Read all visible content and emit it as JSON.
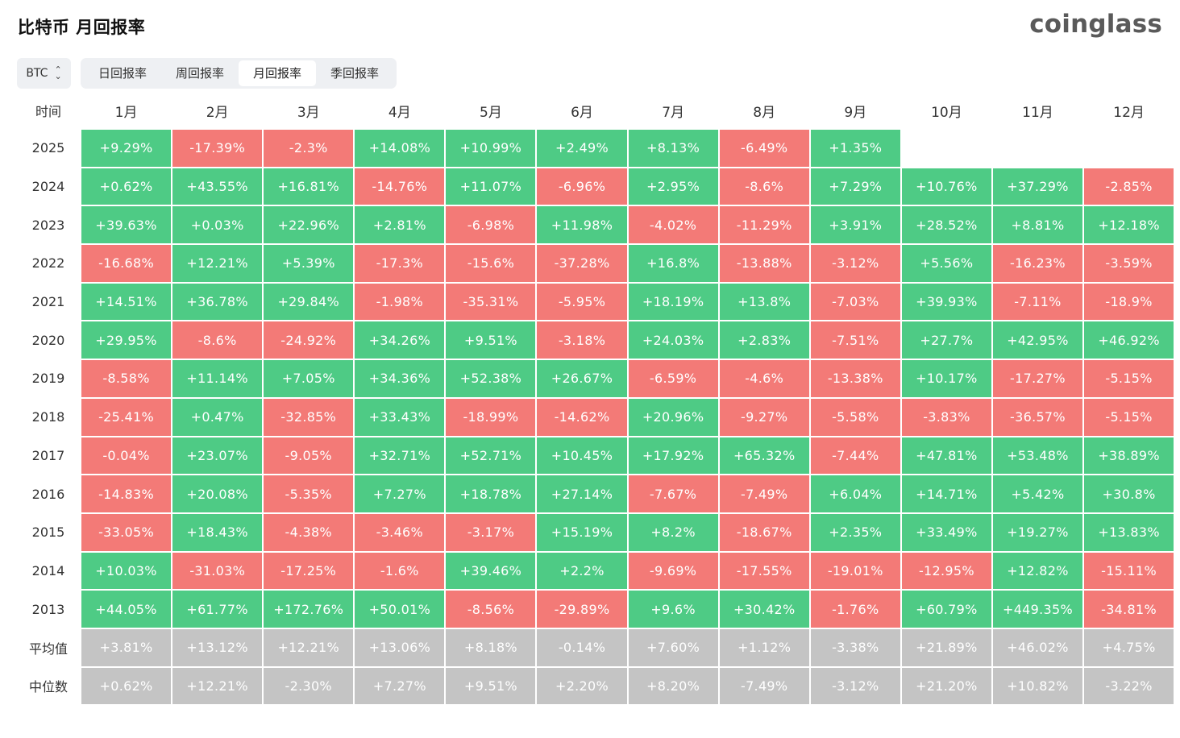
{
  "title": "比特币 月回报率",
  "logo": "coinglass",
  "coin_select": {
    "value": "BTC"
  },
  "tabs": [
    {
      "label": "日回报率",
      "active": false
    },
    {
      "label": "周回报率",
      "active": false
    },
    {
      "label": "月回报率",
      "active": true
    },
    {
      "label": "季回报率",
      "active": false
    }
  ],
  "table": {
    "corner_label": "时间",
    "months": [
      "1月",
      "2月",
      "3月",
      "4月",
      "5月",
      "6月",
      "7月",
      "8月",
      "9月",
      "10月",
      "11月",
      "12月"
    ],
    "rows": [
      {
        "year": "2025",
        "values": [
          "+9.29%",
          "-17.39%",
          "-2.3%",
          "+14.08%",
          "+10.99%",
          "+2.49%",
          "+8.13%",
          "-6.49%",
          "+1.35%",
          "",
          "",
          ""
        ]
      },
      {
        "year": "2024",
        "values": [
          "+0.62%",
          "+43.55%",
          "+16.81%",
          "-14.76%",
          "+11.07%",
          "-6.96%",
          "+2.95%",
          "-8.6%",
          "+7.29%",
          "+10.76%",
          "+37.29%",
          "-2.85%"
        ]
      },
      {
        "year": "2023",
        "values": [
          "+39.63%",
          "+0.03%",
          "+22.96%",
          "+2.81%",
          "-6.98%",
          "+11.98%",
          "-4.02%",
          "-11.29%",
          "+3.91%",
          "+28.52%",
          "+8.81%",
          "+12.18%"
        ]
      },
      {
        "year": "2022",
        "values": [
          "-16.68%",
          "+12.21%",
          "+5.39%",
          "-17.3%",
          "-15.6%",
          "-37.28%",
          "+16.8%",
          "-13.88%",
          "-3.12%",
          "+5.56%",
          "-16.23%",
          "-3.59%"
        ]
      },
      {
        "year": "2021",
        "values": [
          "+14.51%",
          "+36.78%",
          "+29.84%",
          "-1.98%",
          "-35.31%",
          "-5.95%",
          "+18.19%",
          "+13.8%",
          "-7.03%",
          "+39.93%",
          "-7.11%",
          "-18.9%"
        ]
      },
      {
        "year": "2020",
        "values": [
          "+29.95%",
          "-8.6%",
          "-24.92%",
          "+34.26%",
          "+9.51%",
          "-3.18%",
          "+24.03%",
          "+2.83%",
          "-7.51%",
          "+27.7%",
          "+42.95%",
          "+46.92%"
        ]
      },
      {
        "year": "2019",
        "values": [
          "-8.58%",
          "+11.14%",
          "+7.05%",
          "+34.36%",
          "+52.38%",
          "+26.67%",
          "-6.59%",
          "-4.6%",
          "-13.38%",
          "+10.17%",
          "-17.27%",
          "-5.15%"
        ]
      },
      {
        "year": "2018",
        "values": [
          "-25.41%",
          "+0.47%",
          "-32.85%",
          "+33.43%",
          "-18.99%",
          "-14.62%",
          "+20.96%",
          "-9.27%",
          "-5.58%",
          "-3.83%",
          "-36.57%",
          "-5.15%"
        ]
      },
      {
        "year": "2017",
        "values": [
          "-0.04%",
          "+23.07%",
          "-9.05%",
          "+32.71%",
          "+52.71%",
          "+10.45%",
          "+17.92%",
          "+65.32%",
          "-7.44%",
          "+47.81%",
          "+53.48%",
          "+38.89%"
        ]
      },
      {
        "year": "2016",
        "values": [
          "-14.83%",
          "+20.08%",
          "-5.35%",
          "+7.27%",
          "+18.78%",
          "+27.14%",
          "-7.67%",
          "-7.49%",
          "+6.04%",
          "+14.71%",
          "+5.42%",
          "+30.8%"
        ]
      },
      {
        "year": "2015",
        "values": [
          "-33.05%",
          "+18.43%",
          "-4.38%",
          "-3.46%",
          "-3.17%",
          "+15.19%",
          "+8.2%",
          "-18.67%",
          "+2.35%",
          "+33.49%",
          "+19.27%",
          "+13.83%"
        ]
      },
      {
        "year": "2014",
        "values": [
          "+10.03%",
          "-31.03%",
          "-17.25%",
          "-1.6%",
          "+39.46%",
          "+2.2%",
          "-9.69%",
          "-17.55%",
          "-19.01%",
          "-12.95%",
          "+12.82%",
          "-15.11%"
        ]
      },
      {
        "year": "2013",
        "values": [
          "+44.05%",
          "+61.77%",
          "+172.76%",
          "+50.01%",
          "-8.56%",
          "-29.89%",
          "+9.6%",
          "+30.42%",
          "-1.76%",
          "+60.79%",
          "+449.35%",
          "-34.81%"
        ]
      }
    ],
    "stats": [
      {
        "label": "平均值",
        "values": [
          "+3.81%",
          "+13.12%",
          "+12.21%",
          "+13.06%",
          "+8.18%",
          "-0.14%",
          "+7.60%",
          "+1.12%",
          "-3.38%",
          "+21.89%",
          "+46.02%",
          "+4.75%"
        ]
      },
      {
        "label": "中位数",
        "values": [
          "+0.62%",
          "+12.21%",
          "-2.30%",
          "+7.27%",
          "+9.51%",
          "+2.20%",
          "+8.20%",
          "-7.49%",
          "-3.12%",
          "+21.20%",
          "+10.82%",
          "-3.22%"
        ]
      }
    ]
  },
  "colors": {
    "positive": "#4ecb85",
    "negative": "#f37a77",
    "stat": "#c4c4c4"
  }
}
